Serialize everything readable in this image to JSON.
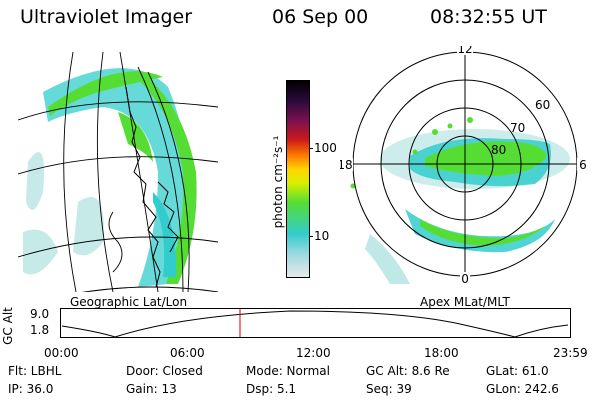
{
  "header": {
    "instrument": "Ultraviolet Imager",
    "date": "06 Sep 00",
    "time": "08:32:55 UT"
  },
  "colorbar": {
    "unit_label": "photon cm⁻²s⁻¹",
    "ticks": [
      "100",
      "10"
    ]
  },
  "polar": {
    "mlt_labels": [
      "12",
      "18",
      "6",
      "0"
    ],
    "lat_labels": [
      "60",
      "70",
      "80"
    ]
  },
  "panels": {
    "left_title": "Geographic Lat/Lon",
    "right_title": "Apex MLat/MLT"
  },
  "altitude_plot": {
    "ylabel": "GC Alt",
    "yticks": [
      "9.0",
      "1.8"
    ],
    "xticks": [
      "00:00",
      "06:00",
      "12:00",
      "18:00",
      "23:59"
    ],
    "marker_time": "08:32:55"
  },
  "info": {
    "row1": [
      "Flt: LBHL",
      "Door: Closed",
      "Mode: Normal",
      "GC Alt: 8.6 Re",
      "GLat:  61.0"
    ],
    "row2": [
      "IP: 36.0",
      "Gain: 13",
      "Dsp:     5.1",
      "Seq: 39",
      "GLon: 242.6"
    ]
  },
  "colors": {
    "aurora_green": "#55dd33",
    "aurora_cyan": "#33cccc",
    "aurora_pale": "#bfe8e6",
    "marker_red": "#dd0000"
  }
}
